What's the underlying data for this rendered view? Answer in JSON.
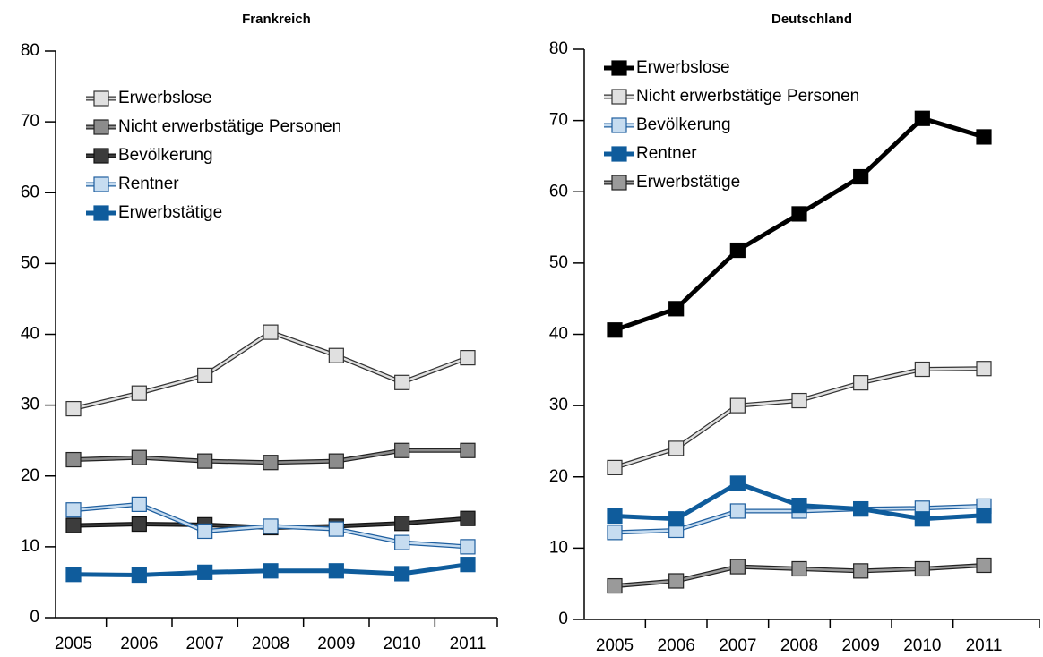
{
  "chart_data": [
    {
      "type": "line",
      "title": "Frankreich",
      "categories": [
        "2005",
        "2006",
        "2007",
        "2008",
        "2009",
        "2010",
        "2011"
      ],
      "ylim": [
        0,
        80
      ],
      "yticks": [
        0,
        10,
        20,
        30,
        40,
        50,
        60,
        70,
        80
      ],
      "legend": "upper left",
      "series": [
        {
          "name": "Erwerbslose",
          "color": "#e0e0e0",
          "edge": "#333333",
          "values": [
            29.5,
            31.7,
            34.2,
            40.3,
            37.0,
            33.2,
            36.7
          ]
        },
        {
          "name": "Nicht erwerbstätige Personen",
          "color": "#8c8c8c",
          "edge": "#222222",
          "values": [
            22.3,
            22.6,
            22.1,
            21.9,
            22.1,
            23.6,
            23.6
          ]
        },
        {
          "name": "Bevölkerung",
          "color": "#3c3c3c",
          "edge": "#111111",
          "values": [
            13.0,
            13.2,
            13.1,
            12.7,
            12.9,
            13.3,
            14.0
          ]
        },
        {
          "name": "Rentner",
          "color": "#c6dcf0",
          "edge": "#1f5f9f",
          "values": [
            15.2,
            16.0,
            12.2,
            12.9,
            12.5,
            10.6,
            10.0
          ]
        },
        {
          "name": "Erwerbstätige",
          "color": "#0f5c9c",
          "edge": "#0f5c9c",
          "values": [
            6.1,
            6.0,
            6.4,
            6.6,
            6.6,
            6.2,
            7.5
          ]
        }
      ]
    },
    {
      "type": "line",
      "title": "Deutschland",
      "categories": [
        "2005",
        "2006",
        "2007",
        "2008",
        "2009",
        "2010",
        "2011"
      ],
      "ylim": [
        0,
        80
      ],
      "yticks": [
        0,
        10,
        20,
        30,
        40,
        50,
        60,
        70,
        80
      ],
      "legend": "upper left",
      "series": [
        {
          "name": "Erwerbslose",
          "color": "#000000",
          "edge": "#000000",
          "values": [
            40.6,
            43.6,
            51.8,
            56.9,
            62.1,
            70.3,
            67.7
          ]
        },
        {
          "name": "Nicht erwerbstätige Personen",
          "color": "#e0e0e0",
          "edge": "#333333",
          "values": [
            21.3,
            24.0,
            30.0,
            30.7,
            33.2,
            35.1,
            35.2
          ]
        },
        {
          "name": "Bevölkerung",
          "color": "#c6dcf0",
          "edge": "#1f5f9f",
          "values": [
            12.2,
            12.5,
            15.2,
            15.2,
            15.5,
            15.6,
            15.9
          ]
        },
        {
          "name": "Rentner",
          "color": "#0f5c9c",
          "edge": "#0f5c9c",
          "values": [
            14.5,
            14.1,
            19.1,
            16.0,
            15.5,
            14.1,
            14.6
          ]
        },
        {
          "name": "Erwerbstätige",
          "color": "#9a9a9a",
          "edge": "#222222",
          "values": [
            4.7,
            5.4,
            7.4,
            7.1,
            6.8,
            7.1,
            7.6
          ]
        }
      ]
    }
  ]
}
